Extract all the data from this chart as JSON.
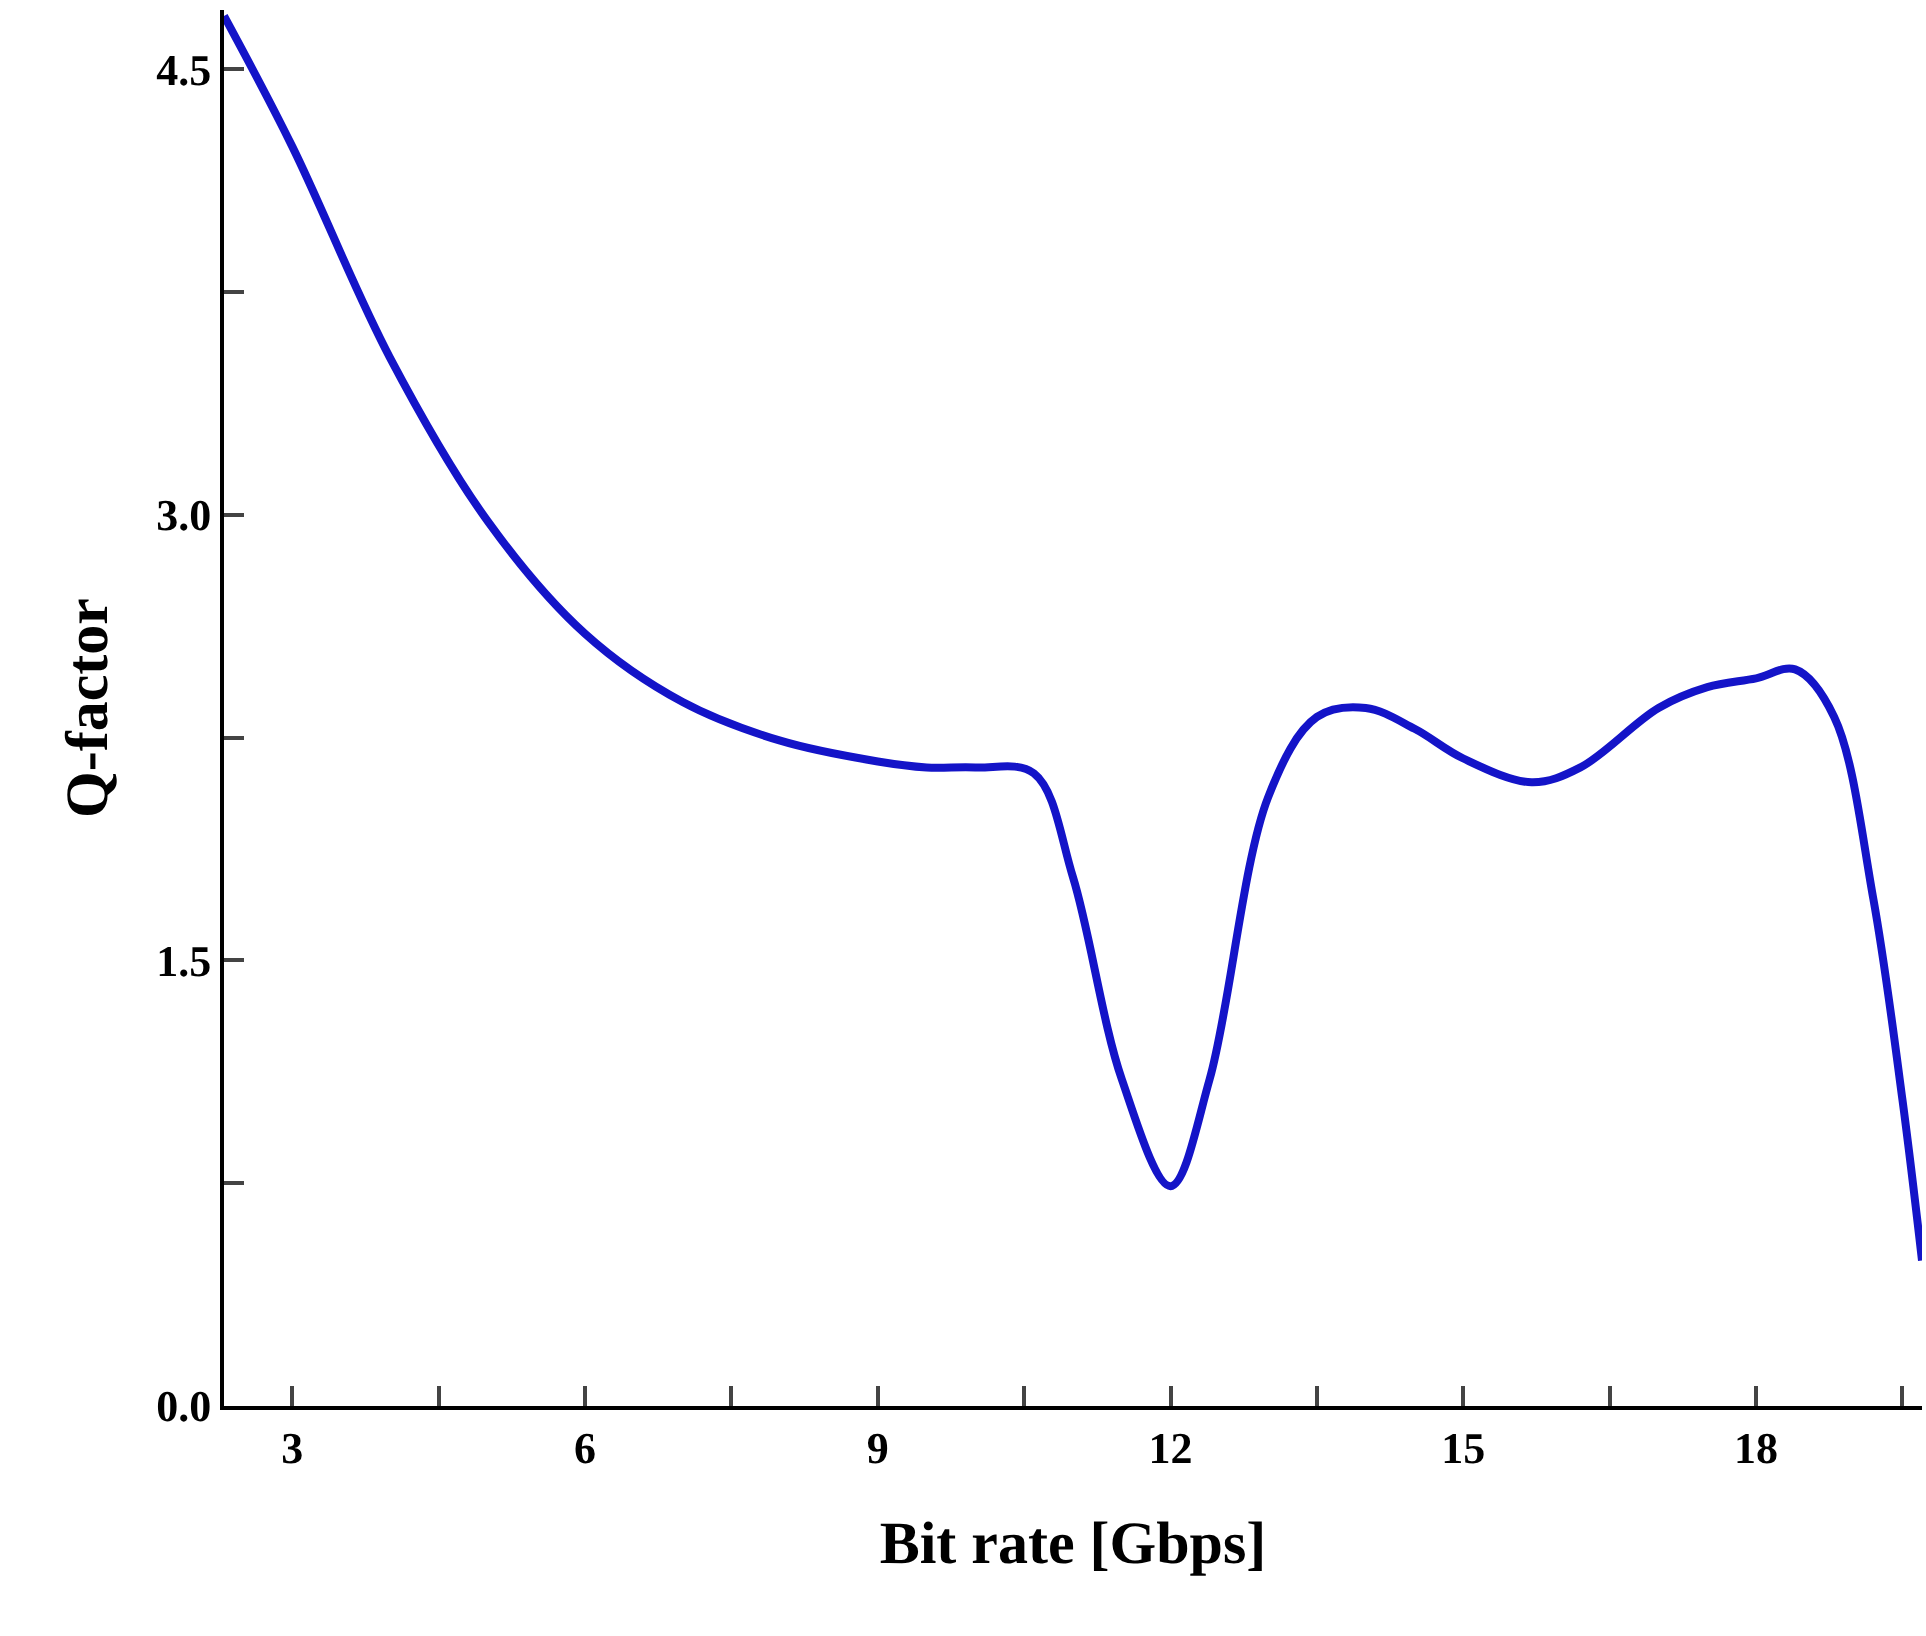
{
  "chart_data": {
    "type": "line",
    "xlabel": "Bit rate [Gbps]",
    "ylabel": "Q-factor",
    "series": [
      {
        "color": "#1414c8",
        "x": [
          2.3,
          3,
          4,
          5,
          6,
          7,
          8,
          9,
          9.5,
          10,
          10.6,
          11,
          11.5,
          12,
          12.4,
          13,
          13.5,
          14,
          14.5,
          15,
          15.7,
          16.2,
          17,
          17.5,
          18,
          18.4,
          18.8,
          19.2,
          19.5,
          19.7
        ],
        "values": [
          4.68,
          4.24,
          3.53,
          2.98,
          2.6,
          2.37,
          2.24,
          2.17,
          2.15,
          2.15,
          2.13,
          1.78,
          1.1,
          0.74,
          1.1,
          2.05,
          2.32,
          2.35,
          2.28,
          2.18,
          2.1,
          2.15,
          2.35,
          2.42,
          2.45,
          2.48,
          2.32,
          1.71,
          1.03,
          0.49
        ]
      }
    ],
    "xlim": [
      2.3,
      19.7
    ],
    "ylim": [
      0,
      4.7
    ],
    "xticks": [
      3,
      {
        "value": 4.5,
        "label": null
      },
      6,
      {
        "value": 7.5,
        "label": null
      },
      9,
      {
        "value": 10.5,
        "label": null
      },
      12,
      {
        "value": 13.5,
        "label": null
      },
      15,
      {
        "value": 16.5,
        "label": null
      },
      18,
      {
        "value": 19.5,
        "label": null
      }
    ],
    "yticks": [
      "0.0",
      {
        "value": 0.75,
        "label": null
      },
      1.5,
      {
        "value": 2.25,
        "label": null
      },
      "3.0",
      {
        "value": 3.75,
        "label": null
      },
      4.5
    ],
    "marker": "none",
    "line_style": "solid"
  }
}
